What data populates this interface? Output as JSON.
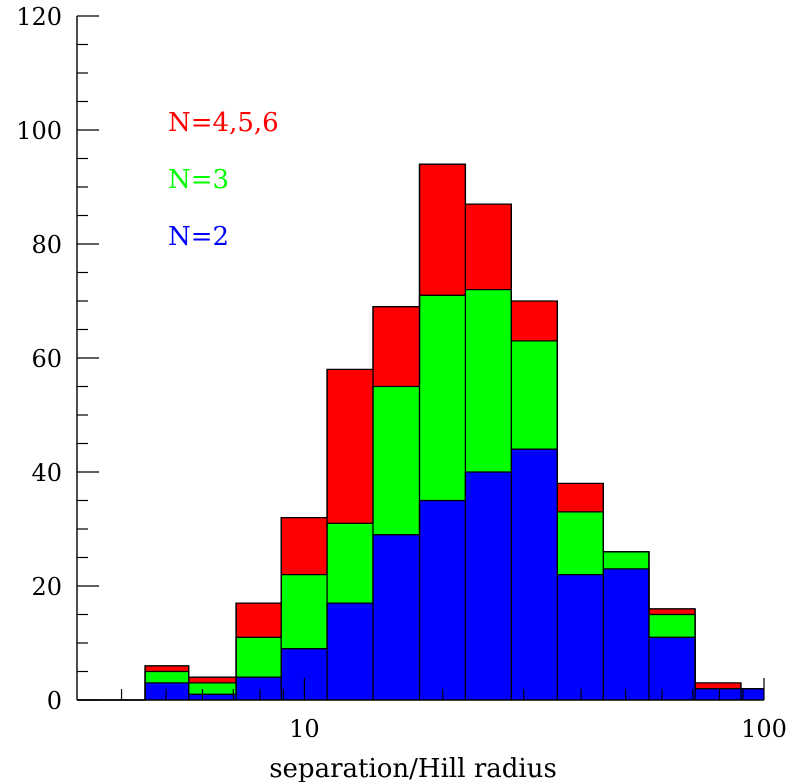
{
  "chart_data": {
    "type": "bar",
    "style": "stacked-step-histogram",
    "xlabel": "separation/Hill radius",
    "ylabel": "",
    "xscale": "log",
    "xlim": [
      3.2,
      100
    ],
    "ylim": [
      0,
      120
    ],
    "yticks": [
      0,
      20,
      40,
      60,
      80,
      100,
      120
    ],
    "xticks": [
      10,
      100
    ],
    "grid": false,
    "legend_position": "top-left",
    "bin_edges": [
      3.2,
      4.5,
      5.6,
      7.1,
      8.9,
      11.2,
      14.1,
      17.8,
      22.4,
      28.2,
      35.5,
      44.7,
      56.2,
      70.8,
      89.1,
      100
    ],
    "series": [
      {
        "name": "N=4,5,6",
        "color": "#ff0000",
        "cumulative_top": [
          0,
          6,
          4,
          17,
          32,
          58,
          69,
          94,
          87,
          70,
          38,
          26,
          16,
          3,
          2
        ]
      },
      {
        "name": "N=3",
        "color": "#00ff00",
        "cumulative_top": [
          0,
          5,
          3,
          11,
          22,
          31,
          55,
          71,
          72,
          63,
          33,
          26,
          15,
          2,
          2
        ]
      },
      {
        "name": "N=2",
        "color": "#0000ff",
        "cumulative_top": [
          0,
          3,
          1,
          4,
          9,
          17,
          29,
          35,
          40,
          44,
          22,
          23,
          11,
          2,
          2
        ]
      }
    ]
  }
}
